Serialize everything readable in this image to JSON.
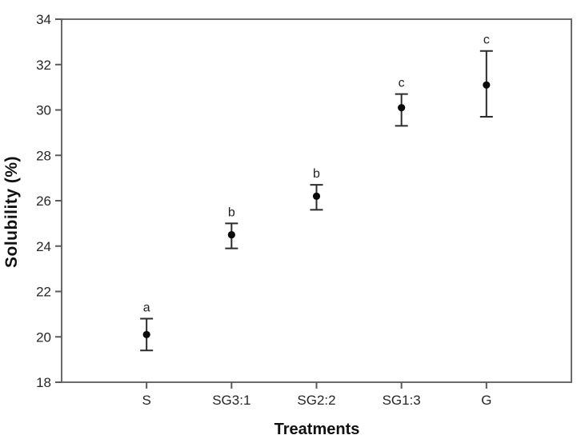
{
  "chart_data": {
    "type": "scatter",
    "title": "",
    "xlabel": "Treatments",
    "ylabel": "Solubility (%)",
    "categories": [
      "S",
      "SG3:1",
      "SG2:2",
      "SG1:3",
      "G"
    ],
    "series": [
      {
        "name": "Solubility",
        "marker": "filled-circle",
        "points": [
          {
            "category": "S",
            "y": 20.1,
            "y_lower": 19.4,
            "y_upper": 20.8,
            "sig_letter": "a"
          },
          {
            "category": "SG3:1",
            "y": 24.5,
            "y_lower": 23.9,
            "y_upper": 25.0,
            "sig_letter": "b"
          },
          {
            "category": "SG2:2",
            "y": 26.2,
            "y_lower": 25.6,
            "y_upper": 26.7,
            "sig_letter": "b"
          },
          {
            "category": "SG1:3",
            "y": 30.1,
            "y_lower": 29.3,
            "y_upper": 30.7,
            "sig_letter": "c"
          },
          {
            "category": "G",
            "y": 31.1,
            "y_lower": 29.7,
            "y_upper": 32.6,
            "sig_letter": "c"
          }
        ]
      }
    ],
    "ylim": [
      18,
      34
    ],
    "yticks": [
      18,
      20,
      22,
      24,
      26,
      28,
      30,
      32,
      34
    ],
    "grid": false,
    "legend": "none",
    "frame": "box",
    "tick_direction": "out",
    "error_bars": "vertical-with-caps",
    "colors": {
      "background": "#ffffff",
      "frame": "#6a6a6a",
      "tick": "#5a5a5a",
      "tick_label": "#262626",
      "error_bar": "#2b2b2b",
      "marker": "#0a0a0a",
      "sig_letter": "#222222",
      "axis_title": "#111111"
    }
  }
}
